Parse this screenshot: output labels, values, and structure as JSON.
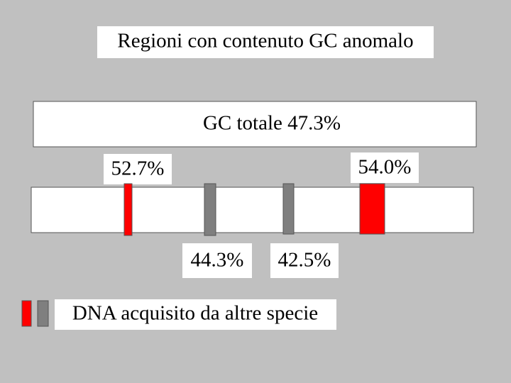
{
  "title": "Regioni con contenuto GC anomalo",
  "genome": {
    "label": "GC totale 47.3%"
  },
  "regions": [
    {
      "label": "52.7%"
    },
    {
      "label": "44.3%"
    },
    {
      "label": "42.5%"
    },
    {
      "label": "54.0%"
    }
  ],
  "legend": {
    "label": "DNA acquisito da altre specie"
  }
}
